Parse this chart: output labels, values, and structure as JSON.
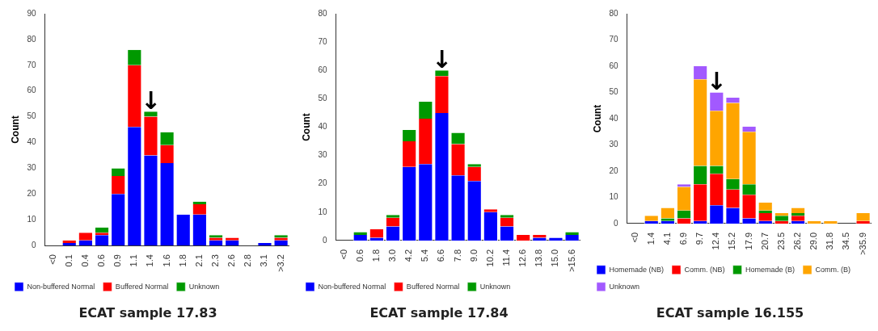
{
  "chart_data": [
    {
      "type": "bar",
      "stacked": true,
      "title": "ECAT sample 17.83",
      "ylabel": "Count",
      "categories": [
        "<0",
        "0.1",
        "0.4",
        "0.6",
        "0.9",
        "1.1",
        "1.4",
        "1.6",
        "1.8",
        "2.1",
        "2.3",
        "2.6",
        "2.8",
        "3.1",
        ">3.2"
      ],
      "series": [
        {
          "name": "Non-buffered Normal",
          "color": "#0000ff",
          "values": [
            0,
            1,
            2,
            4,
            20,
            46,
            35,
            32,
            12,
            12,
            2,
            2,
            0,
            1,
            2
          ]
        },
        {
          "name": "Buffered Normal",
          "color": "#ff0000",
          "values": [
            0,
            1,
            3,
            1,
            7,
            24,
            15,
            7,
            0,
            4,
            1,
            1,
            0,
            0,
            1
          ]
        },
        {
          "name": "Unknown",
          "color": "#009900",
          "values": [
            0,
            0,
            0,
            2,
            3,
            6,
            2,
            5,
            0,
            1,
            1,
            0,
            0,
            0,
            1
          ]
        }
      ],
      "ylim": [
        0,
        90
      ],
      "yticks": [
        0,
        10,
        20,
        30,
        40,
        50,
        60,
        70,
        80,
        90
      ],
      "grid": false,
      "legend": "bottom",
      "annotations": [
        {
          "text": "↓",
          "x": "1.4",
          "y": 52
        }
      ]
    },
    {
      "type": "bar",
      "stacked": true,
      "title": "ECAT sample 17.84",
      "ylabel": "Count",
      "categories": [
        "<0",
        "0.6",
        "1.8",
        "3.0",
        "4.2",
        "5.4",
        "6.6",
        "7.8",
        "9.0",
        "10.2",
        "11.4",
        "12.6",
        "13.8",
        "15.0",
        ">15.6"
      ],
      "series": [
        {
          "name": "Non-buffered Normal",
          "color": "#0000ff",
          "values": [
            0,
            2,
            1,
            5,
            26,
            27,
            45,
            23,
            21,
            10,
            5,
            0,
            1,
            1,
            2
          ]
        },
        {
          "name": "Buffered Normal",
          "color": "#ff0000",
          "values": [
            0,
            0,
            3,
            3,
            9,
            16,
            13,
            11,
            5,
            1,
            3,
            2,
            1,
            0,
            0
          ]
        },
        {
          "name": "Unknown",
          "color": "#009900",
          "values": [
            0,
            1,
            0,
            1,
            4,
            6,
            2,
            4,
            1,
            0,
            1,
            0,
            0,
            0,
            1
          ]
        }
      ],
      "ylim": [
        0,
        80
      ],
      "yticks": [
        0,
        10,
        20,
        30,
        40,
        50,
        60,
        70,
        80
      ],
      "grid": false,
      "legend": "bottom",
      "annotations": [
        {
          "text": "↓",
          "x": "6.6",
          "y": 60
        }
      ]
    },
    {
      "type": "bar",
      "stacked": true,
      "title": "ECAT sample 16.155",
      "ylabel": "Count",
      "categories": [
        "<0",
        "1.4",
        "4.1",
        "6.9",
        "9.7",
        "12.4",
        "15.2",
        "17.9",
        "20.7",
        "23.5",
        "26.2",
        "29.0",
        "31.8",
        "34.5",
        ">35.9"
      ],
      "series": [
        {
          "name": "Homemade (NB)",
          "color": "#0000ff",
          "values": [
            0,
            1,
            1,
            0,
            1,
            7,
            6,
            2,
            1,
            0,
            1,
            0,
            0,
            0,
            0
          ]
        },
        {
          "name": "Comm. (NB)",
          "color": "#ff0000",
          "values": [
            0,
            0,
            0,
            2,
            14,
            12,
            7,
            9,
            3,
            1,
            2,
            0,
            0,
            0,
            1
          ]
        },
        {
          "name": "Homemade (B)",
          "color": "#009900",
          "values": [
            0,
            0,
            1,
            3,
            7,
            3,
            4,
            4,
            1,
            2,
            1,
            0,
            0,
            0,
            0
          ]
        },
        {
          "name": "Comm. (B)",
          "color": "#ffa500",
          "values": [
            0,
            2,
            4,
            9,
            33,
            21,
            29,
            20,
            3,
            1,
            2,
            1,
            1,
            0,
            3
          ]
        },
        {
          "name": "Unknown",
          "color": "#a259ff",
          "values": [
            0,
            0,
            0,
            1,
            5,
            7,
            2,
            2,
            0,
            0,
            0,
            0,
            0,
            0,
            0
          ]
        }
      ],
      "ylim": [
        0,
        80
      ],
      "yticks": [
        0,
        10,
        20,
        30,
        40,
        50,
        60,
        70,
        80
      ],
      "grid": false,
      "legend": "bottom",
      "annotations": [
        {
          "text": "↓",
          "x": "12.4",
          "y": 50
        }
      ]
    }
  ]
}
